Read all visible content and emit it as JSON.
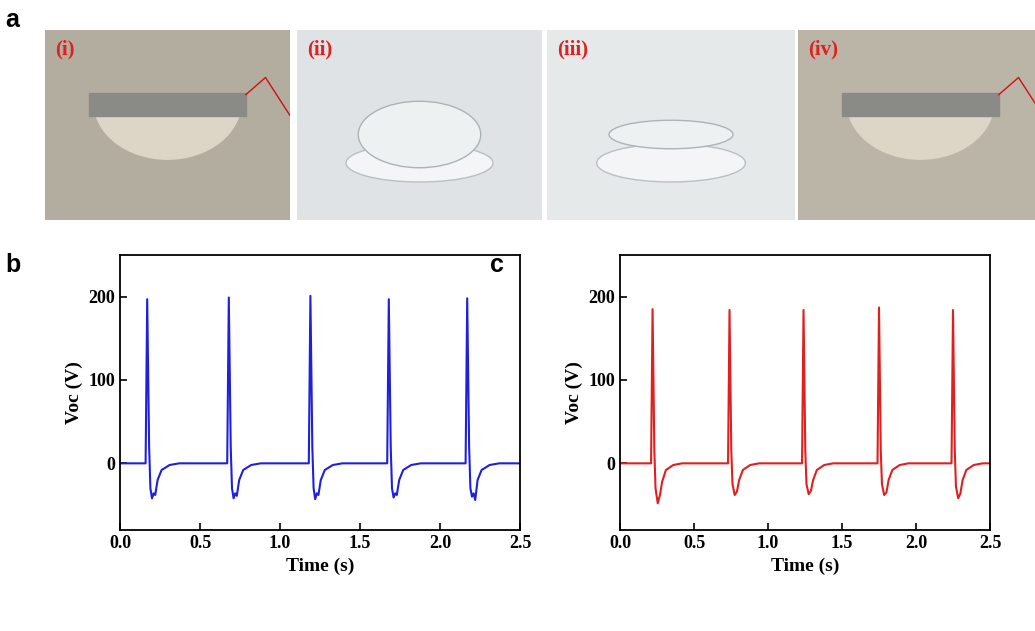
{
  "panel_a": {
    "label": "a",
    "photos": [
      "(i)",
      "(ii)",
      "(iii)",
      "(iv)"
    ]
  },
  "chart_data": [
    {
      "panel": "b",
      "type": "line",
      "x_label": "Time (s)",
      "y_label": "Voc (V)",
      "xlim": [
        0,
        2.5
      ],
      "ylim": [
        -80,
        250
      ],
      "xticks": [
        {
          "value": 0,
          "label": "0.0"
        },
        0.5,
        {
          "value": 1,
          "label": "1.0"
        },
        1.5,
        {
          "value": 2,
          "label": "2.0"
        },
        2.5
      ],
      "yticks": [
        0,
        100,
        200
      ],
      "x": [
        0.0,
        0.16,
        0.17,
        0.182,
        0.19,
        0.2,
        0.21,
        0.22,
        0.235,
        0.26,
        0.31,
        0.37,
        0.67,
        0.68,
        0.692,
        0.7,
        0.71,
        0.72,
        0.73,
        0.745,
        0.77,
        0.82,
        0.88,
        1.18,
        1.19,
        1.202,
        1.21,
        1.22,
        1.23,
        1.24,
        1.255,
        1.28,
        1.33,
        1.39,
        1.67,
        1.68,
        1.692,
        1.7,
        1.71,
        1.72,
        1.73,
        1.745,
        1.77,
        1.82,
        1.88,
        2.16,
        2.17,
        2.182,
        2.19,
        2.2,
        2.21,
        2.22,
        2.235,
        2.26,
        2.31,
        2.37,
        2.5
      ],
      "series": [
        {
          "color": "#1f1fe0",
          "values": [
            0,
            0,
            197,
            20,
            -30,
            -42,
            -36,
            -38,
            -20,
            -8,
            -2,
            0,
            0,
            199,
            20,
            -30,
            -42,
            -36,
            -39,
            -20,
            -8,
            -2,
            0,
            0,
            201,
            20,
            -30,
            -43,
            -36,
            -38,
            -20,
            -8,
            -2,
            0,
            0,
            197,
            20,
            -30,
            -41,
            -36,
            -38,
            -20,
            -8,
            -2,
            0,
            0,
            198,
            20,
            -30,
            -40,
            -36,
            -44,
            -20,
            -8,
            -2,
            0,
            0
          ]
        }
      ]
    },
    {
      "panel": "c",
      "type": "line",
      "x_label": "Time (s)",
      "y_label": "Voc (V)",
      "xlim": [
        0,
        2.5
      ],
      "ylim": [
        -80,
        250
      ],
      "xticks": [
        {
          "value": 0,
          "label": "0.0"
        },
        0.5,
        {
          "value": 1,
          "label": "1.0"
        },
        1.5,
        {
          "value": 2,
          "label": "2.0"
        },
        2.5
      ],
      "yticks": [
        0,
        100,
        200
      ],
      "x": [
        0.0,
        0.21,
        0.22,
        0.232,
        0.24,
        0.255,
        0.27,
        0.285,
        0.31,
        0.36,
        0.42,
        0.73,
        0.74,
        0.752,
        0.76,
        0.775,
        0.79,
        0.805,
        0.83,
        0.88,
        0.94,
        1.23,
        1.24,
        1.252,
        1.26,
        1.275,
        1.29,
        1.305,
        1.33,
        1.38,
        1.44,
        1.74,
        1.75,
        1.762,
        1.77,
        1.785,
        1.8,
        1.815,
        1.84,
        1.89,
        1.95,
        2.24,
        2.25,
        2.262,
        2.27,
        2.285,
        2.3,
        2.315,
        2.34,
        2.39,
        2.45,
        2.5
      ],
      "series": [
        {
          "color": "#e01f1f",
          "values": [
            0,
            0,
            185,
            15,
            -30,
            -48,
            -38,
            -22,
            -8,
            -2,
            0,
            0,
            184,
            15,
            -25,
            -38,
            -34,
            -20,
            -8,
            -2,
            0,
            0,
            184,
            15,
            -25,
            -37,
            -33,
            -20,
            -8,
            -2,
            0,
            0,
            187,
            15,
            -25,
            -38,
            -35,
            -20,
            -8,
            -2,
            0,
            0,
            184,
            15,
            -28,
            -42,
            -36,
            -20,
            -8,
            -2,
            0,
            0
          ]
        }
      ]
    }
  ]
}
